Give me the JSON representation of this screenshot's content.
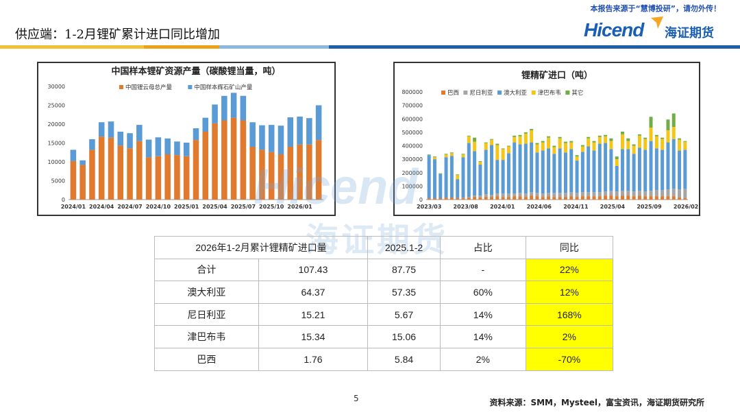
{
  "disclaimer": "本报告来源于“慧博投研”，请勿外传！",
  "page_title": "供应端：1-2月锂矿累计进口同比增加",
  "logo": {
    "word": "Hicend",
    "cn": "海证期货"
  },
  "colors": {
    "orange": "#E07A2E",
    "blue": "#5A9BD5",
    "gray": "#A5A5A5",
    "yellow": "#F5C518",
    "green": "#70AD47",
    "highlight": "#FFFF00"
  },
  "chart_data": [
    {
      "type": "bar",
      "stacked": true,
      "title": "中国样本锂矿资源产量（碳酸锂当量，吨）",
      "legend": [
        "中国锂云母总产量",
        "中国样本辉石矿山产量"
      ],
      "ylim": [
        0,
        30000
      ],
      "yticks": [
        "0",
        "5000",
        "10000",
        "15000",
        "20000",
        "25000",
        "30000"
      ],
      "xtick_labels": [
        "2024/01",
        "2024/04",
        "2024/07",
        "2024/10",
        "2025/01",
        "2025/04",
        "2025/07",
        "2025/10",
        "2026/01"
      ],
      "series": [
        {
          "name": "中国锂云母总产量",
          "values": [
            10200,
            9200,
            13200,
            16700,
            16400,
            14300,
            13600,
            15500,
            11200,
            11500,
            12000,
            11800,
            11500,
            15800,
            18000,
            20200,
            21000,
            21700,
            21000,
            14000,
            13200,
            12600,
            12000,
            14000,
            14600,
            14600,
            15800
          ]
        },
        {
          "name": "中国样本辉石矿山产量",
          "values": [
            3000,
            1200,
            2800,
            3800,
            4300,
            3700,
            4000,
            4300,
            4700,
            5000,
            4200,
            3600,
            3600,
            3100,
            3700,
            5000,
            6500,
            6600,
            6500,
            6500,
            6500,
            7200,
            7600,
            7800,
            7400,
            7000,
            9200
          ]
        }
      ]
    },
    {
      "type": "bar",
      "stacked": true,
      "title": "锂精矿进口（吨）",
      "legend": [
        "巴西",
        "尼日利亚",
        "澳大利亚",
        "津巴布韦",
        "其它"
      ],
      "ylim": [
        0,
        800000
      ],
      "yticks": [
        "0",
        "100000",
        "200000",
        "300000",
        "400000",
        "500000",
        "600000",
        "700000",
        "800000"
      ],
      "xtick_labels": [
        "2023/03",
        "2023/08",
        "2024/01",
        "2024/06",
        "2024/11",
        "2025/04",
        "2025/09",
        "2026/02"
      ],
      "series": [
        {
          "name": "巴西",
          "values": [
            10000,
            10000,
            10000,
            15000,
            15000,
            12000,
            10000,
            15000,
            20000,
            15000,
            20000,
            20000,
            25000,
            20000,
            20000,
            25000,
            25000,
            20000,
            30000,
            25000,
            20000,
            25000,
            20000,
            20000,
            20000,
            25000,
            20000,
            25000,
            25000,
            25000,
            25000,
            30000,
            30000,
            25000,
            30000,
            30000,
            25000,
            30000,
            25000,
            25000,
            25000,
            25000,
            25000,
            25000,
            15000,
            10000
          ]
        },
        {
          "name": "尼日利亚",
          "values": [
            0,
            0,
            0,
            0,
            0,
            0,
            5000,
            5000,
            10000,
            15000,
            20000,
            15000,
            20000,
            25000,
            25000,
            20000,
            25000,
            25000,
            25000,
            25000,
            25000,
            25000,
            30000,
            30000,
            30000,
            30000,
            30000,
            30000,
            30000,
            30000,
            30000,
            30000,
            35000,
            35000,
            35000,
            35000,
            35000,
            35000,
            35000,
            40000,
            45000,
            45000,
            50000,
            55000,
            60000,
            70000
          ]
        },
        {
          "name": "澳大利亚",
          "values": [
            320000,
            290000,
            180000,
            300000,
            310000,
            140000,
            300000,
            400000,
            330000,
            230000,
            330000,
            370000,
            250000,
            250000,
            300000,
            380000,
            360000,
            370000,
            370000,
            300000,
            320000,
            330000,
            290000,
            330000,
            300000,
            320000,
            240000,
            300000,
            340000,
            310000,
            360000,
            360000,
            310000,
            190000,
            310000,
            310000,
            280000,
            320000,
            310000,
            370000,
            310000,
            300000,
            350000,
            370000,
            290000,
            290000
          ]
        },
        {
          "name": "津巴布韦",
          "values": [
            0,
            15000,
            0,
            20000,
            20000,
            30000,
            20000,
            50000,
            70000,
            20000,
            50000,
            40000,
            110000,
            80000,
            50000,
            40000,
            60000,
            75000,
            90000,
            60000,
            60000,
            80000,
            50000,
            75000,
            70000,
            50000,
            30000,
            40000,
            60000,
            60000,
            50000,
            50000,
            60000,
            50000,
            110000,
            60000,
            60000,
            90000,
            80000,
            100000,
            90000,
            80000,
            90000,
            90000,
            80000,
            60000
          ]
        },
        {
          "name": "其它",
          "values": [
            5000,
            5000,
            5000,
            5000,
            5000,
            5000,
            5000,
            5000,
            30000,
            5000,
            5000,
            5000,
            10000,
            5000,
            5000,
            10000,
            10000,
            10000,
            10000,
            10000,
            10000,
            10000,
            10000,
            10000,
            10000,
            10000,
            10000,
            10000,
            10000,
            10000,
            10000,
            10000,
            20000,
            20000,
            20000,
            20000,
            10000,
            10000,
            10000,
            80000,
            10000,
            10000,
            80000,
            100000,
            10000,
            5000
          ]
        }
      ]
    }
  ],
  "table": {
    "headers": [
      "2026年1-2月累计锂精矿进口量",
      "2025.1-2",
      "占比",
      "同比"
    ],
    "rows": [
      [
        "合计",
        "107.43",
        "87.75",
        "-",
        "22%"
      ],
      [
        "澳大利亚",
        "64.37",
        "57.35",
        "60%",
        "12%"
      ],
      [
        "尼日利亚",
        "15.21",
        "5.67",
        "14%",
        "168%"
      ],
      [
        "津巴布韦",
        "15.34",
        "15.06",
        "14%",
        "2%"
      ],
      [
        "巴西",
        "1.76",
        "5.84",
        "2%",
        "-70%"
      ]
    ]
  },
  "page_number": "5",
  "source_note": "资料来源：SMM，Mysteel，富宝资讯，海证期货研究所"
}
